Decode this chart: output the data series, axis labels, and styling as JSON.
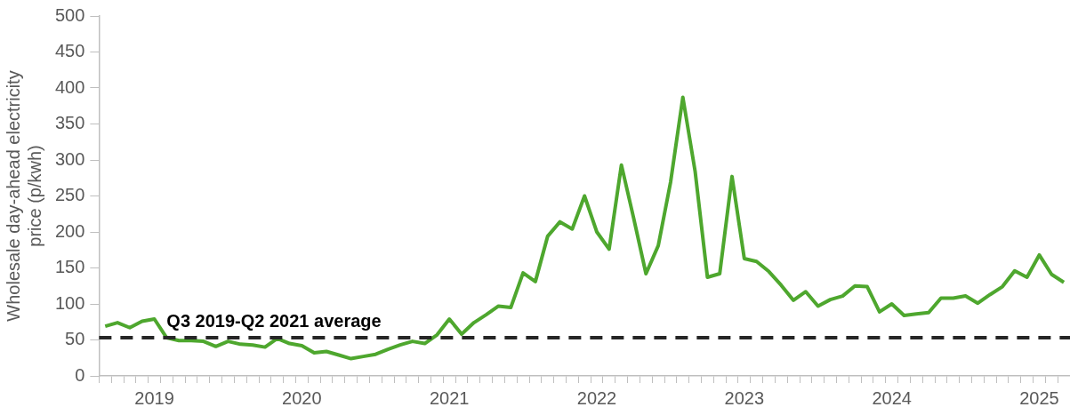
{
  "chart_data": {
    "type": "line",
    "ylabel": "Wholesale day-ahead electricity price (p/kwh)",
    "categories": [
      null,
      null,
      null,
      null,
      "2019",
      null,
      null,
      null,
      null,
      null,
      null,
      null,
      null,
      null,
      null,
      null,
      "2020",
      null,
      null,
      null,
      null,
      null,
      null,
      null,
      null,
      null,
      null,
      null,
      "2021",
      null,
      null,
      null,
      null,
      null,
      null,
      null,
      null,
      null,
      null,
      null,
      "2022",
      null,
      null,
      null,
      null,
      null,
      null,
      null,
      null,
      null,
      null,
      null,
      "2023",
      null,
      null,
      null,
      null,
      null,
      null,
      null,
      null,
      null,
      null,
      null,
      "2024",
      null,
      null,
      null,
      null,
      null,
      null,
      null,
      null,
      null,
      null,
      null,
      "2025",
      null,
      null
    ],
    "series": [
      {
        "color": "#4ea72e",
        "values": [
          69,
          74,
          67,
          76,
          79,
          53,
          49,
          49,
          48,
          41,
          48,
          44,
          43,
          40,
          52,
          45,
          42,
          32,
          34,
          29,
          24,
          27,
          30,
          37,
          43,
          48,
          45,
          57,
          79,
          58,
          74,
          85,
          97,
          95,
          143,
          131,
          194,
          214,
          204,
          250,
          200,
          176,
          293,
          219,
          142,
          181,
          269,
          387,
          284,
          137,
          142,
          277,
          163,
          159,
          145,
          126,
          105,
          117,
          97,
          106,
          111,
          125,
          124,
          89,
          100,
          84,
          86,
          88,
          108,
          108,
          111,
          101,
          113,
          124,
          146,
          137,
          168,
          141,
          130
        ]
      }
    ],
    "ylim": [
      0,
      500
    ],
    "yticks": [
      0,
      50,
      100,
      150,
      200,
      250,
      300,
      350,
      400,
      450,
      500
    ],
    "ref_lines": [
      {
        "axis": "y",
        "value": 53,
        "label": "Q3 2019-Q2 2021 average",
        "color": "#262626",
        "line_style": "dashed"
      }
    ],
    "grid": false,
    "legend": false,
    "marker": "none",
    "line_style": "solid"
  }
}
